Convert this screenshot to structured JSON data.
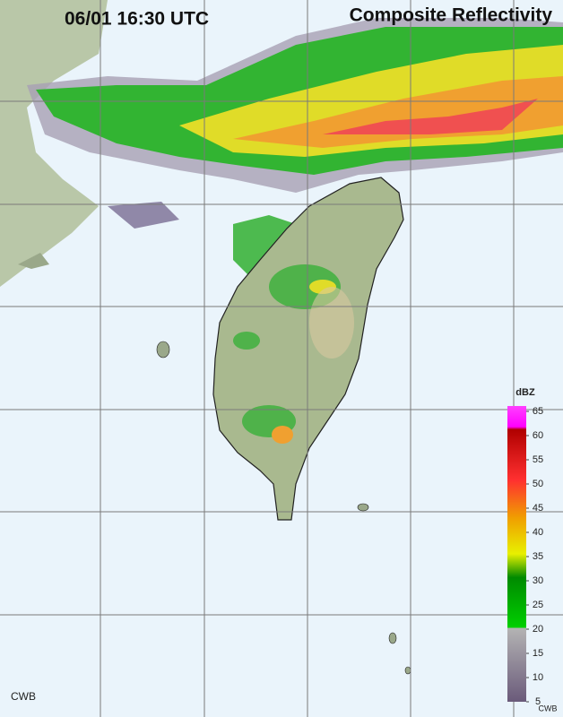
{
  "header": {
    "time": "06/01 16:30 UTC",
    "product": "Composite Reflectivity"
  },
  "legend": {
    "unit": "dBZ",
    "ticks": [
      65,
      60,
      55,
      50,
      45,
      40,
      35,
      30,
      25,
      20,
      15,
      10,
      5
    ]
  },
  "footer": {
    "source": "CWB",
    "source_small": "CWB"
  }
}
